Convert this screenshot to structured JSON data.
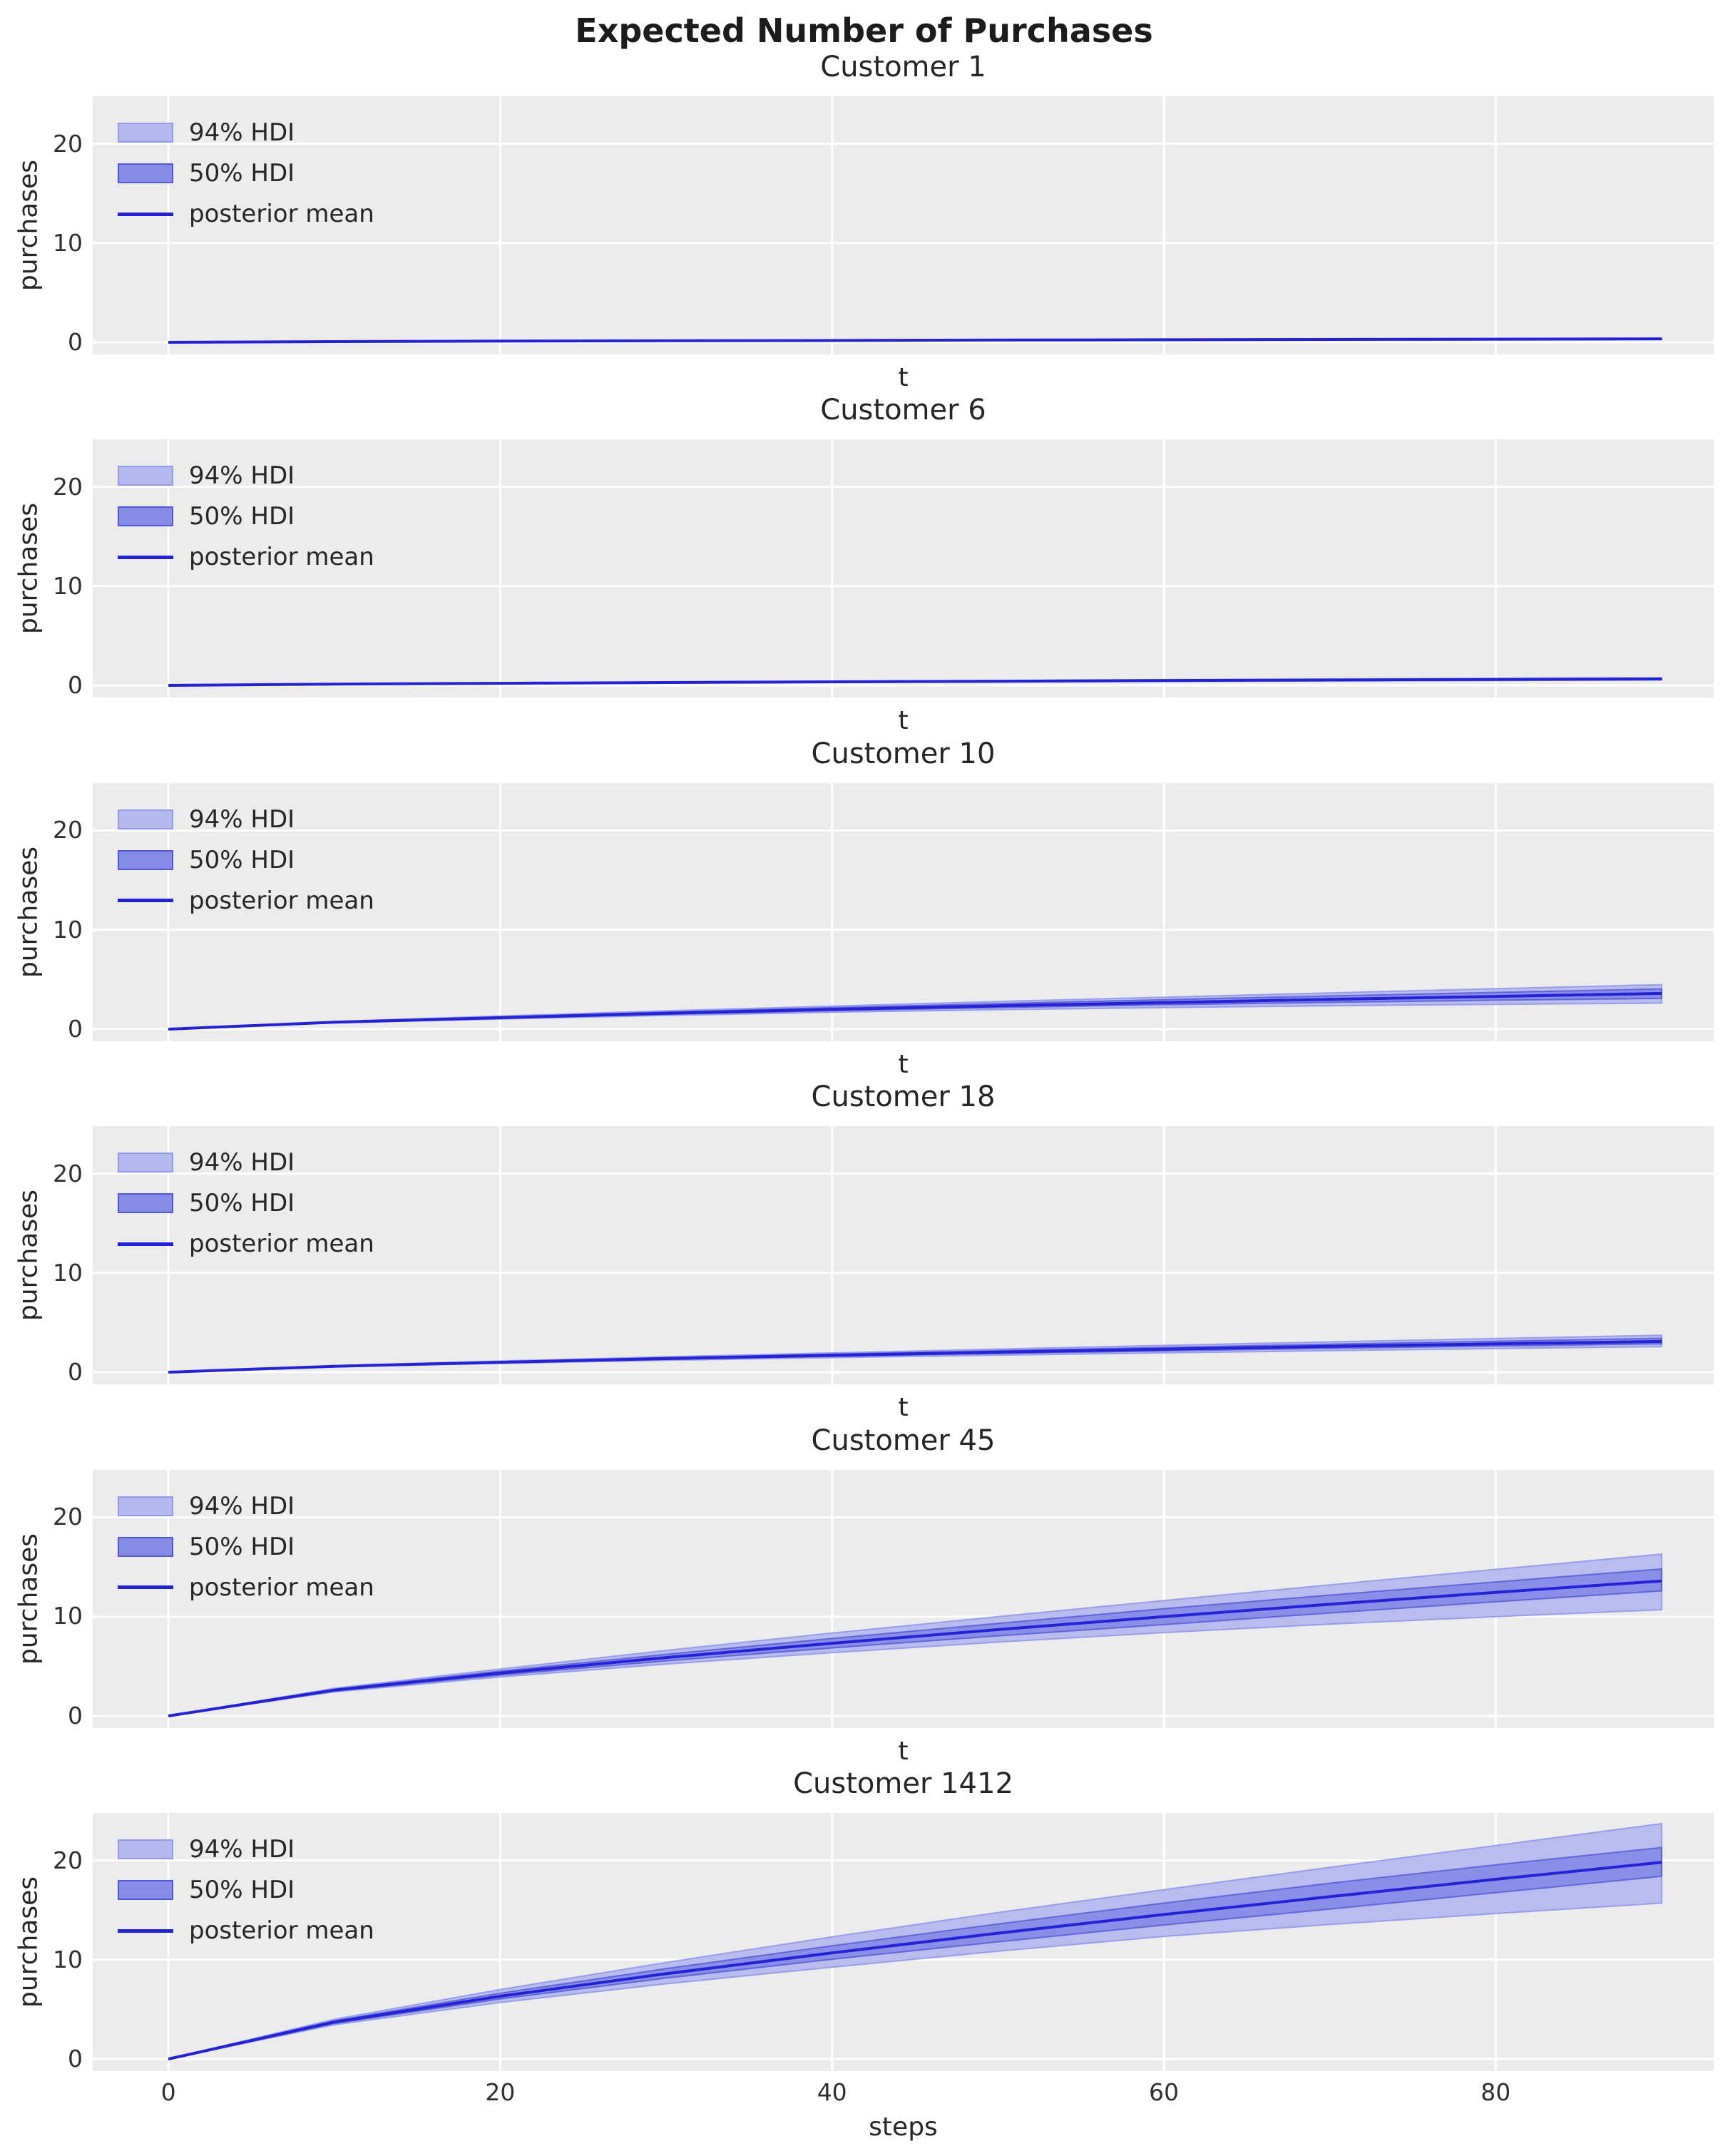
{
  "figure": {
    "title": "Expected Number of Purchases"
  },
  "style": {
    "background": "#ffffff",
    "axes_background": "#ececec",
    "grid_color": "#ffffff",
    "text_color": "#262626",
    "mean_line_color": "#2422d6",
    "hdi94_fill": "#b5b9ee",
    "hdi94_edge": "#9298ea",
    "hdi50_fill": "#868be6",
    "hdi50_edge": "#5157d5"
  },
  "legend": {
    "items": [
      {
        "swatch": "hdi94",
        "label": "94% HDI"
      },
      {
        "swatch": "hdi50",
        "label": "50% HDI"
      },
      {
        "swatch": "line",
        "label": "posterior mean"
      }
    ]
  },
  "axes": {
    "ylabel": "purchases",
    "y_ticks": [
      0,
      10,
      20
    ],
    "x_ticks": [
      0,
      20,
      40,
      60,
      80
    ],
    "xlim": [
      -4.56,
      93.14
    ],
    "ylim": [
      -1.22,
      24.78
    ],
    "grid": true,
    "legend_position": "upper left"
  },
  "chart_data": [
    {
      "type": "line",
      "title": "Customer 1",
      "xlabel": "t",
      "ylabel": "purchases",
      "show_x_ticklabels": false,
      "x": [
        0,
        10,
        20,
        30,
        40,
        50,
        60,
        70,
        80,
        90
      ],
      "series": {
        "posterior_mean": [
          0,
          0.07,
          0.12,
          0.16,
          0.19,
          0.23,
          0.26,
          0.29,
          0.32,
          0.35
        ],
        "hdi94_lower": [
          0,
          0.05,
          0.09,
          0.12,
          0.15,
          0.18,
          0.2,
          0.23,
          0.25,
          0.28
        ],
        "hdi94_upper": [
          0,
          0.08,
          0.14,
          0.19,
          0.23,
          0.27,
          0.31,
          0.35,
          0.39,
          0.42
        ],
        "hdi50_lower": [
          0,
          0.06,
          0.11,
          0.14,
          0.17,
          0.21,
          0.23,
          0.26,
          0.29,
          0.31
        ],
        "hdi50_upper": [
          0,
          0.08,
          0.13,
          0.17,
          0.21,
          0.25,
          0.28,
          0.32,
          0.35,
          0.39
        ]
      }
    },
    {
      "type": "line",
      "title": "Customer 6",
      "xlabel": "t",
      "ylabel": "purchases",
      "show_x_ticklabels": false,
      "x": [
        0,
        10,
        20,
        30,
        40,
        50,
        60,
        70,
        80,
        90
      ],
      "series": {
        "posterior_mean": [
          0,
          0.13,
          0.21,
          0.29,
          0.36,
          0.42,
          0.49,
          0.54,
          0.6,
          0.65
        ],
        "hdi94_lower": [
          0,
          0.11,
          0.18,
          0.24,
          0.3,
          0.35,
          0.4,
          0.45,
          0.49,
          0.54
        ],
        "hdi94_upper": [
          0,
          0.15,
          0.25,
          0.34,
          0.42,
          0.5,
          0.58,
          0.65,
          0.71,
          0.78
        ],
        "hdi50_lower": [
          0,
          0.12,
          0.19,
          0.26,
          0.33,
          0.38,
          0.44,
          0.49,
          0.54,
          0.59
        ],
        "hdi50_upper": [
          0,
          0.14,
          0.23,
          0.31,
          0.39,
          0.46,
          0.53,
          0.59,
          0.65,
          0.71
        ]
      }
    },
    {
      "type": "line",
      "title": "Customer 10",
      "xlabel": "t",
      "ylabel": "purchases",
      "show_x_ticklabels": false,
      "x": [
        0,
        10,
        20,
        30,
        40,
        50,
        60,
        70,
        80,
        90
      ],
      "series": {
        "posterior_mean": [
          0,
          0.7,
          1.15,
          1.6,
          2.0,
          2.35,
          2.68,
          3.0,
          3.3,
          3.6
        ],
        "hdi94_lower": [
          0,
          0.63,
          1.02,
          1.38,
          1.7,
          1.96,
          2.18,
          2.36,
          2.5,
          2.62
        ],
        "hdi94_upper": [
          0,
          0.78,
          1.32,
          1.85,
          2.32,
          2.78,
          3.22,
          3.65,
          4.07,
          4.48
        ],
        "hdi50_lower": [
          0,
          0.67,
          1.09,
          1.5,
          1.86,
          2.17,
          2.46,
          2.7,
          2.92,
          3.1
        ],
        "hdi50_upper": [
          0,
          0.74,
          1.24,
          1.72,
          2.16,
          2.57,
          2.97,
          3.34,
          3.7,
          4.05
        ]
      }
    },
    {
      "type": "line",
      "title": "Customer 18",
      "xlabel": "t",
      "ylabel": "purchases",
      "show_x_ticklabels": false,
      "x": [
        0,
        10,
        20,
        30,
        40,
        50,
        60,
        70,
        80,
        90
      ],
      "series": {
        "posterior_mean": [
          0,
          0.6,
          1.0,
          1.37,
          1.7,
          2.02,
          2.32,
          2.6,
          2.86,
          3.1
        ],
        "hdi94_lower": [
          0,
          0.54,
          0.89,
          1.2,
          1.47,
          1.72,
          1.95,
          2.17,
          2.38,
          2.58
        ],
        "hdi94_upper": [
          0,
          0.67,
          1.12,
          1.55,
          1.94,
          2.33,
          2.7,
          3.05,
          3.39,
          3.72
        ],
        "hdi50_lower": [
          0,
          0.57,
          0.95,
          1.29,
          1.6,
          1.88,
          2.15,
          2.41,
          2.64,
          2.86
        ],
        "hdi50_upper": [
          0,
          0.63,
          1.06,
          1.46,
          1.82,
          2.17,
          2.5,
          2.82,
          3.12,
          3.41
        ]
      }
    },
    {
      "type": "line",
      "title": "Customer 45",
      "xlabel": "t",
      "ylabel": "purchases",
      "show_x_ticklabels": false,
      "x": [
        0,
        10,
        20,
        30,
        40,
        50,
        60,
        70,
        80,
        90
      ],
      "series": {
        "posterior_mean": [
          0,
          2.6,
          4.32,
          5.88,
          7.32,
          8.7,
          10.0,
          11.25,
          12.45,
          13.6
        ],
        "hdi94_lower": [
          0,
          2.42,
          3.93,
          5.23,
          6.38,
          7.44,
          8.4,
          9.25,
          10.0,
          10.7
        ],
        "hdi94_upper": [
          0,
          2.78,
          4.73,
          6.6,
          8.35,
          10.0,
          11.62,
          13.2,
          14.76,
          16.3
        ],
        "hdi50_lower": [
          0,
          2.51,
          4.12,
          5.55,
          6.85,
          8.07,
          9.2,
          10.37,
          11.5,
          12.6
        ],
        "hdi50_upper": [
          0,
          2.69,
          4.52,
          6.21,
          7.8,
          9.32,
          10.8,
          12.17,
          13.5,
          14.8
        ]
      }
    },
    {
      "type": "line",
      "title": "Customer 1412",
      "xlabel": "steps",
      "ylabel": "purchases",
      "show_x_ticklabels": true,
      "x": [
        0,
        10,
        20,
        30,
        40,
        50,
        60,
        70,
        80,
        90
      ],
      "series": {
        "posterior_mean": [
          0,
          3.72,
          6.32,
          8.59,
          10.69,
          12.67,
          14.55,
          16.35,
          18.1,
          19.8
        ],
        "hdi94_lower": [
          0,
          3.45,
          5.7,
          7.58,
          9.25,
          10.85,
          12.35,
          13.55,
          14.65,
          15.7
        ],
        "hdi94_upper": [
          0,
          4.0,
          7.0,
          9.72,
          12.3,
          14.75,
          17.05,
          19.3,
          21.5,
          23.7
        ],
        "hdi50_lower": [
          0,
          3.58,
          6.05,
          8.15,
          10.05,
          11.8,
          13.5,
          15.1,
          16.75,
          18.4
        ],
        "hdi50_upper": [
          0,
          3.86,
          6.62,
          9.1,
          11.4,
          13.6,
          15.7,
          17.7,
          19.55,
          21.3
        ]
      }
    }
  ]
}
